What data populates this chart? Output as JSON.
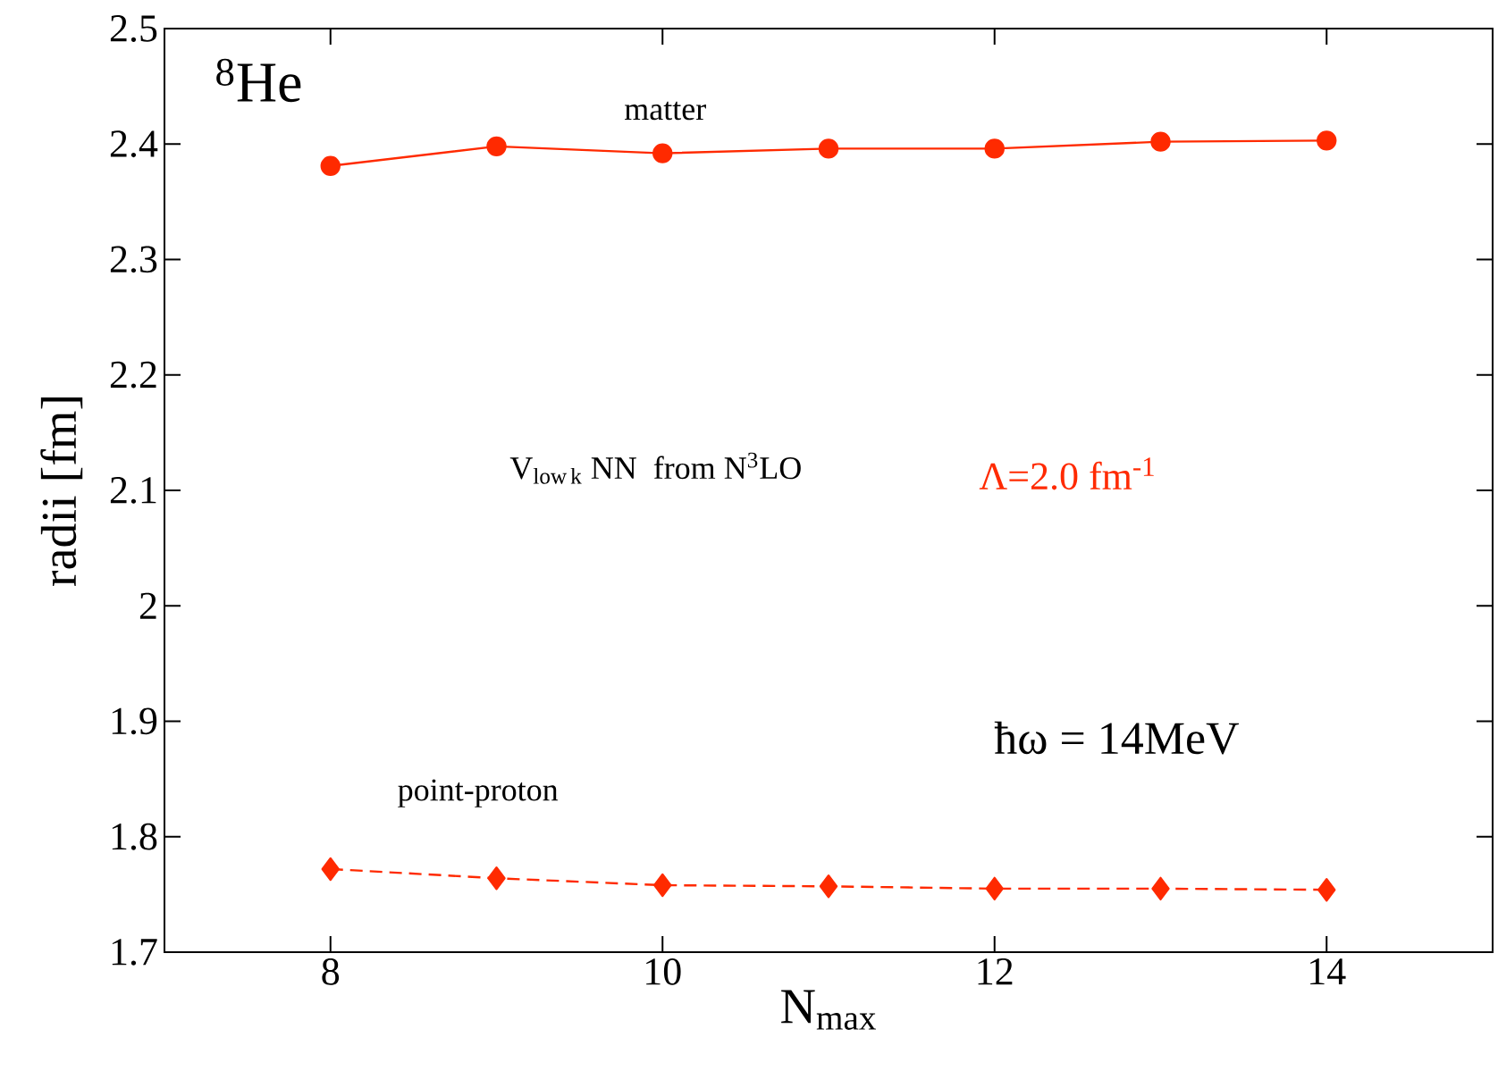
{
  "chart_data": {
    "type": "line",
    "xlabel": "N$_{max}$",
    "ylabel": "radii [fm]",
    "x": [
      8,
      9,
      10,
      11,
      12,
      13,
      14
    ],
    "series": [
      {
        "name": "matter",
        "color": "#ff2a00",
        "marker": "circle",
        "line_style": "solid",
        "values": [
          2.381,
          2.398,
          2.392,
          2.396,
          2.396,
          2.402,
          2.403
        ]
      },
      {
        "name": "point-proton",
        "color": "#ff2a00",
        "marker": "diamond",
        "line_style": "dashed",
        "values": [
          1.772,
          1.764,
          1.758,
          1.757,
          1.755,
          1.755,
          1.754
        ]
      }
    ],
    "annotations": [
      "$^{8}$He",
      "\\mathrm{V_{low\\,k}\\ NN\\ \\ from\\ N^{3}LO}",
      "Λ=2.0 fm$^{-1}$",
      "ħω = 14MeV"
    ],
    "xlim": [
      7,
      15
    ],
    "ylim": [
      1.7,
      2.5
    ],
    "xticks": [
      8,
      10,
      12,
      14
    ],
    "yticks": [
      1.7,
      1.8,
      1.9,
      2,
      2.1,
      2.2,
      2.3,
      2.4,
      2.5
    ],
    "grid": false,
    "legend": false
  }
}
